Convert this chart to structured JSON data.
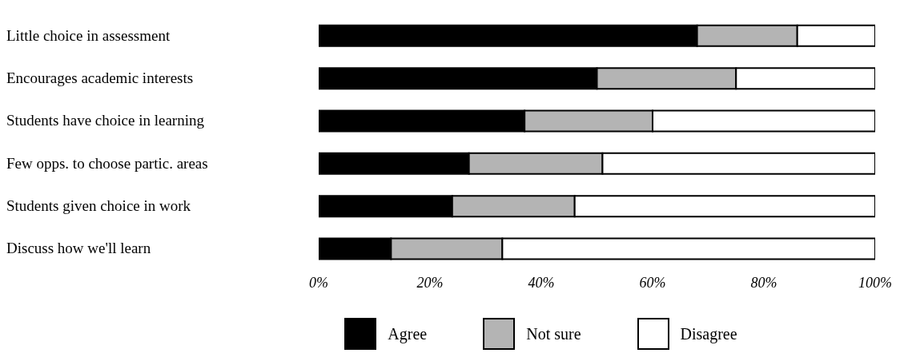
{
  "chart_data": {
    "type": "bar",
    "orientation": "horizontal",
    "stacked": true,
    "categories": [
      "Little choice in assessment",
      "Encourages academic interests",
      "Students have choice in learning",
      "Few opps. to choose partic. areas",
      "Students given choice in work",
      "Discuss how we'll learn"
    ],
    "series": [
      {
        "name": "Agree",
        "color": "#000000",
        "values": [
          68,
          50,
          37,
          27,
          24,
          13
        ]
      },
      {
        "name": "Not sure",
        "color": "#b4b4b4",
        "values": [
          18,
          25,
          23,
          24,
          22,
          20
        ]
      },
      {
        "name": "Disagree",
        "color": "#ffffff",
        "values": [
          14,
          25,
          40,
          49,
          54,
          67
        ]
      }
    ],
    "xlim": [
      0,
      100
    ],
    "xticks": [
      {
        "value": 0,
        "label": "0%"
      },
      {
        "value": 20,
        "label": "20%"
      },
      {
        "value": 40,
        "label": "40%"
      },
      {
        "value": 60,
        "label": "60%"
      },
      {
        "value": 80,
        "label": "80%"
      },
      {
        "value": 100,
        "label": "100%"
      }
    ],
    "grid": false,
    "legend": "bottom"
  }
}
